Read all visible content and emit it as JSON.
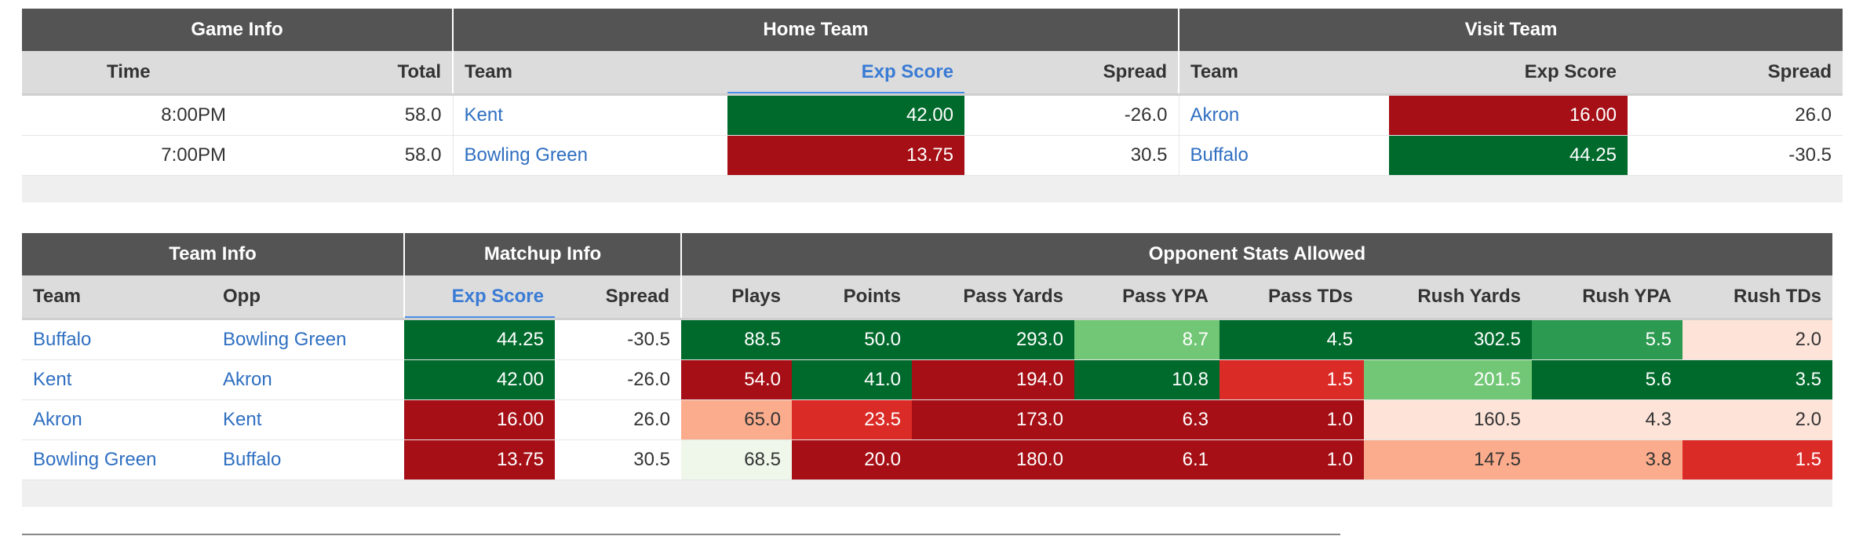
{
  "games": {
    "groups": [
      "Game Info",
      "Home Team",
      "Visit Team"
    ],
    "headers": {
      "time": "Time",
      "total": "Total",
      "home_team": "Team",
      "home_exp": "Exp Score",
      "home_spread": "Spread",
      "visit_team": "Team",
      "visit_exp": "Exp Score",
      "visit_spread": "Spread"
    },
    "rows": [
      {
        "time": "8:00PM",
        "total": "58.0",
        "home_team": "Kent",
        "home_exp": "42.00",
        "home_spread": "-26.0",
        "visit_team": "Akron",
        "visit_exp": "16.00",
        "visit_spread": "26.0"
      },
      {
        "time": "7:00PM",
        "total": "58.0",
        "home_team": "Bowling Green",
        "home_exp": "13.75",
        "home_spread": "30.5",
        "visit_team": "Buffalo",
        "visit_exp": "44.25",
        "visit_spread": "-30.5"
      }
    ]
  },
  "matchups": {
    "groups": [
      "Team Info",
      "Matchup Info",
      "Opponent Stats Allowed"
    ],
    "headers": {
      "team": "Team",
      "opp": "Opp",
      "exp": "Exp Score",
      "spread": "Spread",
      "plays": "Plays",
      "points": "Points",
      "pass_yards": "Pass Yards",
      "pass_ypa": "Pass YPA",
      "pass_tds": "Pass TDs",
      "rush_yards": "Rush Yards",
      "rush_ypa": "Rush YPA",
      "rush_tds": "Rush TDs"
    },
    "rows": [
      {
        "team": "Buffalo",
        "opp": "Bowling Green",
        "exp": "44.25",
        "spread": "-30.5",
        "plays": "88.5",
        "points": "50.0",
        "pass_yards": "293.0",
        "pass_ypa": "8.7",
        "pass_tds": "4.5",
        "rush_yards": "302.5",
        "rush_ypa": "5.5",
        "rush_tds": "2.0"
      },
      {
        "team": "Kent",
        "opp": "Akron",
        "exp": "42.00",
        "spread": "-26.0",
        "plays": "54.0",
        "points": "41.0",
        "pass_yards": "194.0",
        "pass_ypa": "10.8",
        "pass_tds": "1.5",
        "rush_yards": "201.5",
        "rush_ypa": "5.6",
        "rush_tds": "3.5"
      },
      {
        "team": "Akron",
        "opp": "Kent",
        "exp": "16.00",
        "spread": "26.0",
        "plays": "65.0",
        "points": "23.5",
        "pass_yards": "173.0",
        "pass_ypa": "6.3",
        "pass_tds": "1.0",
        "rush_yards": "160.5",
        "rush_ypa": "4.3",
        "rush_tds": "2.0"
      },
      {
        "team": "Bowling Green",
        "opp": "Buffalo",
        "exp": "13.75",
        "spread": "30.5",
        "plays": "68.5",
        "points": "20.0",
        "pass_yards": "180.0",
        "pass_ypa": "6.1",
        "pass_tds": "1.0",
        "rush_yards": "147.5",
        "rush_ypa": "3.8",
        "rush_tds": "1.5"
      }
    ]
  },
  "colors": {
    "header_dark": "#545454",
    "header_light": "#dcdcdc",
    "link": "#2f6fc1",
    "sort_indicator": "#4a8fe7",
    "scale_dark_green": "#006a2c",
    "scale_dark_red": "#a50f15"
  }
}
